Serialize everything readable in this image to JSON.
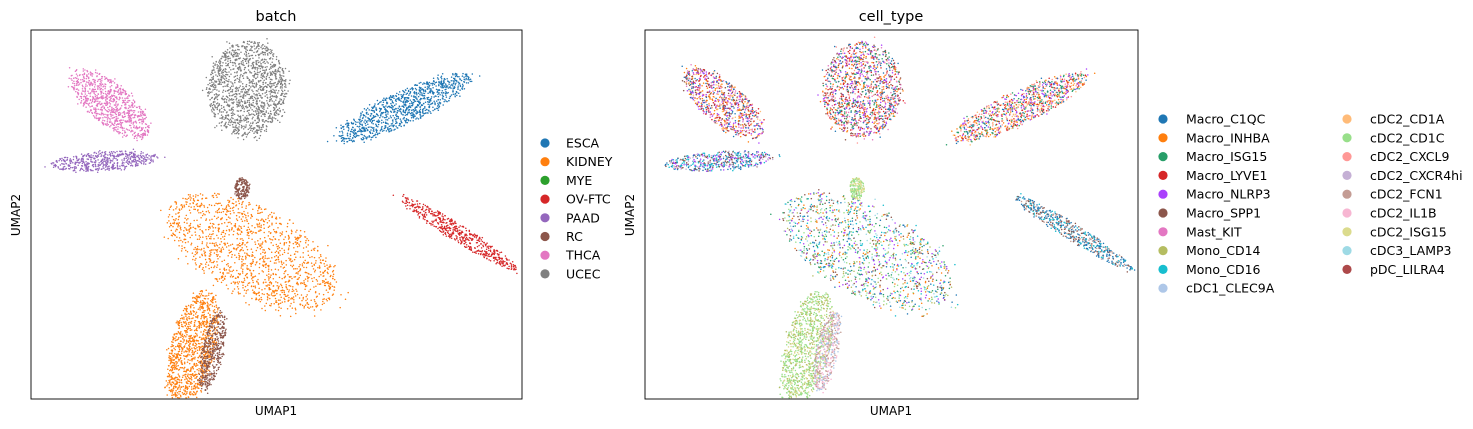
{
  "chart_data": [
    {
      "type": "scatter",
      "title": "batch",
      "xlabel": "UMAP1",
      "ylabel": "UMAP2",
      "grid": false,
      "ticks": false,
      "legend_position": "right",
      "xlim": [
        0,
        100
      ],
      "ylim": [
        0,
        100
      ],
      "legend": [
        {
          "name": "ESCA",
          "color": "#1f77b4"
        },
        {
          "name": "KIDNEY",
          "color": "#ff7f0e"
        },
        {
          "name": "MYE",
          "color": "#2ca02c"
        },
        {
          "name": "OV-FTC",
          "color": "#d62728"
        },
        {
          "name": "PAAD",
          "color": "#9467bd"
        },
        {
          "name": "RC",
          "color": "#8c564b"
        },
        {
          "name": "THCA",
          "color": "#e377c2"
        },
        {
          "name": "UCEC",
          "color": "#7f7f7f"
        }
      ],
      "clusters": [
        {
          "series": "UCEC",
          "cx": 44,
          "cy": 84,
          "rx": 8,
          "ry": 13,
          "angle": -5
        },
        {
          "series": "THCA",
          "cx": 16,
          "cy": 80,
          "rx": 10,
          "ry": 5.5,
          "angle": -40
        },
        {
          "series": "ESCA",
          "cx": 76,
          "cy": 79,
          "rx": 15,
          "ry": 4.5,
          "angle": 25
        },
        {
          "series": "PAAD",
          "cx": 15,
          "cy": 64.5,
          "rx": 11,
          "ry": 2.6,
          "angle": 4
        },
        {
          "series": "OV-FTC",
          "cx": 87,
          "cy": 45,
          "rx": 14,
          "ry": 2.3,
          "angle": -32
        },
        {
          "series": "KIDNEY",
          "cx": 45,
          "cy": 40,
          "rx": 19,
          "ry": 12,
          "angle": -28
        },
        {
          "series": "KIDNEY",
          "cx": 33,
          "cy": 14,
          "rx": 4.5,
          "ry": 16,
          "angle": -14
        },
        {
          "series": "RC",
          "cx": 37,
          "cy": 13,
          "rx": 2.2,
          "ry": 11,
          "angle": -12
        },
        {
          "series": "RC",
          "cx": 43,
          "cy": 57,
          "rx": 1.5,
          "ry": 3,
          "angle": 0
        }
      ]
    },
    {
      "type": "scatter",
      "title": "cell_type",
      "xlabel": "UMAP1",
      "ylabel": "UMAP2",
      "grid": false,
      "ticks": false,
      "legend_position": "right",
      "legend_columns": 2,
      "xlim": [
        0,
        100
      ],
      "ylim": [
        0,
        100
      ],
      "legend": [
        {
          "name": "Macro_C1QC",
          "color": "#1f77b4"
        },
        {
          "name": "Macro_INHBA",
          "color": "#ff7f0e"
        },
        {
          "name": "Macro_ISG15",
          "color": "#279e68"
        },
        {
          "name": "Macro_LYVE1",
          "color": "#d62728"
        },
        {
          "name": "Macro_NLRP3",
          "color": "#aa40fc"
        },
        {
          "name": "Macro_SPP1",
          "color": "#8c564b"
        },
        {
          "name": "Mast_KIT",
          "color": "#e377c2"
        },
        {
          "name": "Mono_CD14",
          "color": "#b5bd61"
        },
        {
          "name": "Mono_CD16",
          "color": "#17becf"
        },
        {
          "name": "cDC1_CLEC9A",
          "color": "#aec7e8"
        },
        {
          "name": "cDC2_CD1A",
          "color": "#ffbb78"
        },
        {
          "name": "cDC2_CD1C",
          "color": "#98df8a"
        },
        {
          "name": "cDC2_CXCL9",
          "color": "#ff9896"
        },
        {
          "name": "cDC2_CXCR4hi",
          "color": "#c5b0d5"
        },
        {
          "name": "cDC2_FCN1",
          "color": "#c49c94"
        },
        {
          "name": "cDC2_IL1B",
          "color": "#f7b6d2"
        },
        {
          "name": "cDC2_ISG15",
          "color": "#dbdb8d"
        },
        {
          "name": "cDC3_LAMP3",
          "color": "#9edae5"
        },
        {
          "name": "pDC_LILRA4",
          "color": "#ad494a"
        }
      ],
      "clusters": [
        {
          "mix": [
            "Macro_C1QC",
            "Macro_INHBA",
            "Macro_NLRP3",
            "Macro_LYVE1",
            "Mast_KIT",
            "Macro_ISG15",
            "Macro_SPP1",
            "cDC2_CXCL9"
          ],
          "cx": 44,
          "cy": 84,
          "rx": 8,
          "ry": 13,
          "angle": -5
        },
        {
          "mix": [
            "Macro_INHBA",
            "Macro_NLRP3",
            "Macro_C1QC",
            "Macro_SPP1",
            "Mast_KIT",
            "cDC2_CD1A",
            "Macro_LYVE1"
          ],
          "cx": 16,
          "cy": 80,
          "rx": 10,
          "ry": 5.5,
          "angle": -40
        },
        {
          "mix": [
            "Macro_NLRP3",
            "Macro_LYVE1",
            "Macro_INHBA",
            "Macro_ISG15",
            "Macro_C1QC",
            "cDC2_CXCL9",
            "cDC2_CD1A"
          ],
          "cx": 76,
          "cy": 79,
          "rx": 15,
          "ry": 4.5,
          "angle": 25
        },
        {
          "mix": [
            "Macro_C1QC",
            "Macro_NLRP3",
            "Mono_CD16",
            "Macro_SPP1",
            "cDC2_CXCR4hi"
          ],
          "cx": 15,
          "cy": 64.5,
          "rx": 11,
          "ry": 2.6,
          "angle": 4
        },
        {
          "mix": [
            "Macro_C1QC",
            "Macro_SPP1",
            "Macro_C1QC",
            "Mono_CD16",
            "cDC2_FCN1"
          ],
          "cx": 87,
          "cy": 45,
          "rx": 14,
          "ry": 2.3,
          "angle": -32
        },
        {
          "mix": [
            "Mono_CD16",
            "cDC3_LAMP3",
            "Macro_C1QC",
            "Mono_CD14",
            "Macro_SPP1",
            "Macro_ISG15",
            "cDC2_CD1C",
            "Macro_INHBA",
            "Macro_NLRP3"
          ],
          "cx": 45,
          "cy": 40,
          "rx": 19,
          "ry": 12,
          "angle": -28
        },
        {
          "mix": [
            "cDC2_CD1C",
            "cDC2_CD1C",
            "Mono_CD14",
            "cDC2_ISG15"
          ],
          "cx": 33,
          "cy": 14,
          "rx": 4.5,
          "ry": 16,
          "angle": -14
        },
        {
          "mix": [
            "cDC2_IL1B",
            "cDC2_FCN1",
            "cDC1_CLEC9A"
          ],
          "cx": 37,
          "cy": 13,
          "rx": 2.2,
          "ry": 11,
          "angle": -12
        },
        {
          "mix": [
            "cDC2_CD1C",
            "cDC2_ISG15"
          ],
          "cx": 43,
          "cy": 57,
          "rx": 1.5,
          "ry": 3,
          "angle": 0
        }
      ]
    }
  ]
}
